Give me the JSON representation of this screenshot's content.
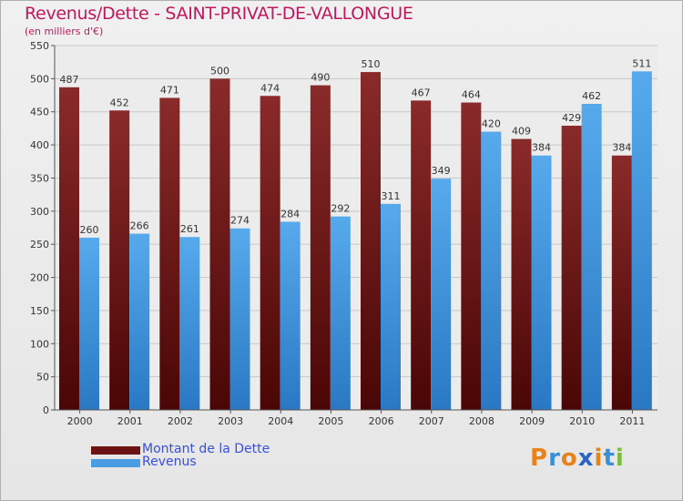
{
  "title": "Revenus/Dette - SAINT-PRIVAT-DE-VALLONGUE",
  "subtitle": "(en milliers d'€)",
  "colors": {
    "title": "#c2185b",
    "dette": "#7a1f1f",
    "revenus": "#4a9de0",
    "legend_text": "#3a4fd8"
  },
  "legend": [
    {
      "label": "Montant de la Dette",
      "color": "#6b1212"
    },
    {
      "label": "Revenus",
      "color": "#4a9de0"
    }
  ],
  "logo": {
    "text": "Proxiti",
    "letters": [
      "P",
      "r",
      "o",
      "x",
      "i",
      "t",
      "i"
    ],
    "colors": [
      "#e8831a",
      "#3a8fd6",
      "#e8831a",
      "#2c64c4",
      "#e8831a",
      "#3a8fd6",
      "#7dbb3c"
    ]
  },
  "chart_data": {
    "type": "bar",
    "title": "Revenus/Dette - SAINT-PRIVAT-DE-VALLONGUE",
    "ylabel": "(en milliers d'€)",
    "categories": [
      "2000",
      "2001",
      "2002",
      "2003",
      "2004",
      "2005",
      "2006",
      "2007",
      "2008",
      "2009",
      "2010",
      "2011"
    ],
    "series": [
      {
        "name": "Montant de la Dette",
        "values": [
          487,
          452,
          471,
          500,
          474,
          490,
          510,
          467,
          464,
          409,
          429,
          384
        ]
      },
      {
        "name": "Revenus",
        "values": [
          260,
          266,
          261,
          274,
          284,
          292,
          311,
          349,
          420,
          384,
          462,
          511
        ]
      }
    ],
    "ylim": [
      0,
      550
    ],
    "yticks": [
      0,
      50,
      100,
      150,
      200,
      250,
      300,
      350,
      400,
      450,
      500,
      550
    ],
    "grid": true,
    "legend_position": "bottom-left"
  }
}
